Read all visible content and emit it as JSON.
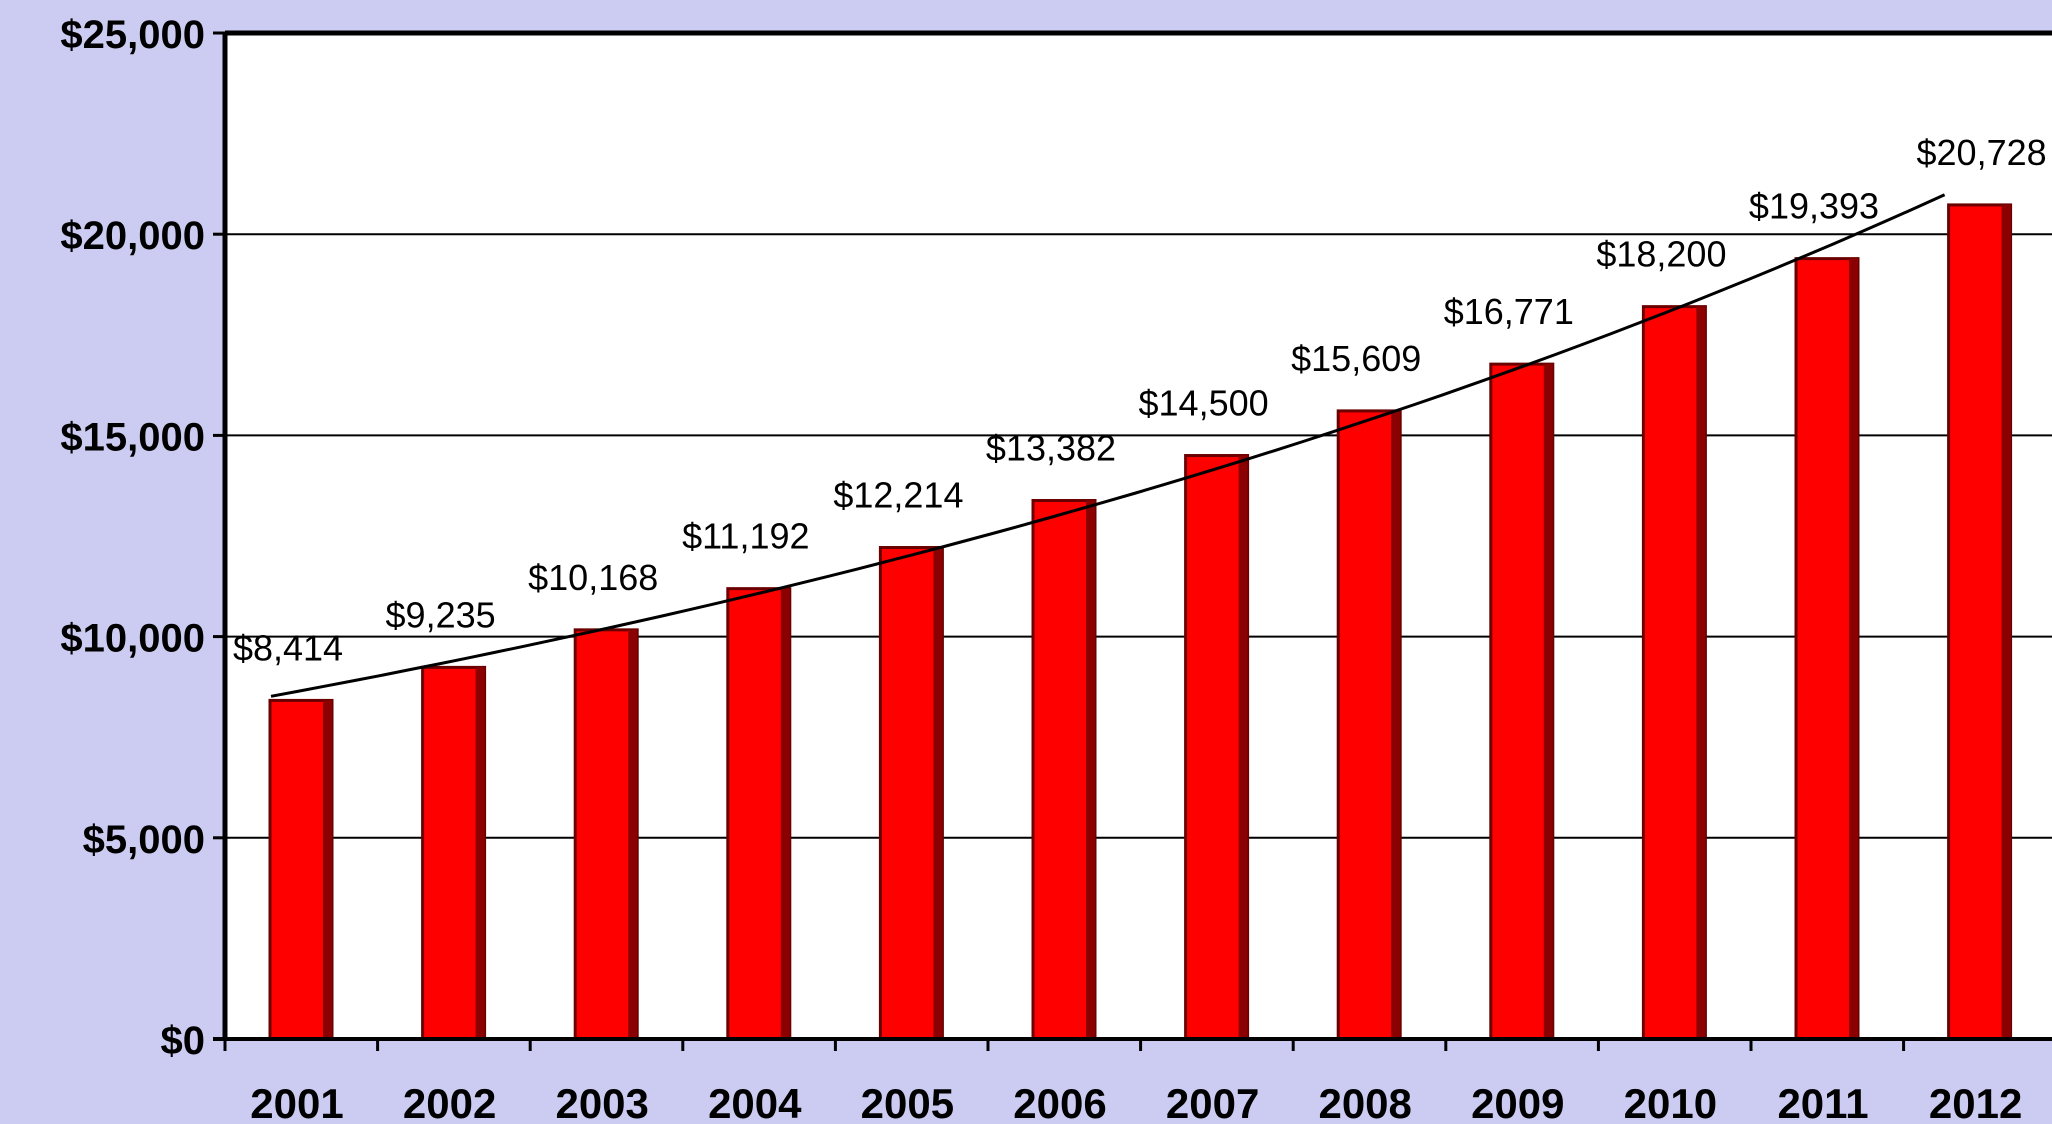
{
  "chart_data": {
    "type": "bar",
    "title": "",
    "xlabel": "",
    "ylabel": "",
    "categories": [
      "2001",
      "2002",
      "2003",
      "2004",
      "2005",
      "2006",
      "2007",
      "2008",
      "2009",
      "2010",
      "2011",
      "2012"
    ],
    "values": [
      8414,
      9235,
      10168,
      11192,
      12214,
      13382,
      14500,
      15609,
      16771,
      18200,
      19393,
      20728
    ],
    "data_labels": [
      "$8,414",
      "$9,235",
      "$10,168",
      "$11,192",
      "$12,214",
      "$13,382",
      "$14,500",
      "$15,609",
      "$16,771",
      "$18,200",
      "$19,393",
      "$20,728"
    ],
    "ylim": [
      0,
      25000
    ],
    "yticks": [
      0,
      5000,
      10000,
      15000,
      20000,
      25000
    ],
    "ytick_labels": [
      "$0",
      "$5,000",
      "$10,000",
      "$15,000",
      "$20,000",
      "$25,000"
    ],
    "trendline": true,
    "grid": true,
    "legend": "none",
    "colors": {
      "bar": "#ff0000",
      "bar_edge": "#6a0000",
      "plot_background": "#ffffff",
      "page_background": "#ccccf2",
      "grid": "#000000",
      "trendline": "#000000"
    }
  }
}
